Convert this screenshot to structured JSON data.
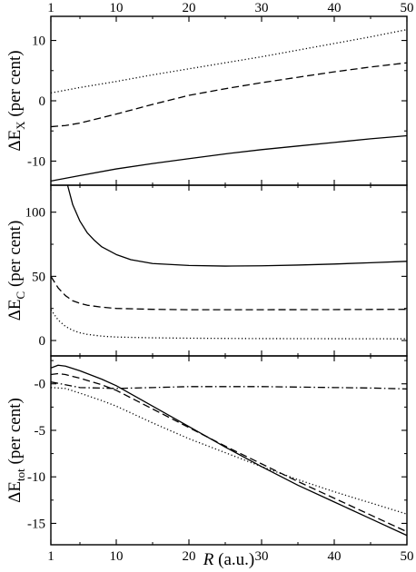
{
  "chart_data": [
    {
      "type": "line",
      "ylabel": {
        "main": "ΔE",
        "sub": "X",
        "tail": " (per cent)"
      },
      "xlim": [
        1,
        50
      ],
      "ylim": [
        -14,
        14
      ],
      "yticks": [
        10,
        0,
        -10
      ],
      "ytick_labels": [
        "10",
        "0",
        "-10"
      ],
      "xticks": [
        1,
        10,
        20,
        30,
        40,
        50
      ],
      "xtick_labels": [
        "1",
        "10",
        "20",
        "30",
        "40",
        "50"
      ],
      "series": [
        {
          "style": "dotted",
          "x": [
            1,
            5,
            10,
            15,
            20,
            25,
            30,
            35,
            40,
            45,
            50
          ],
          "y": [
            1.3,
            2.2,
            3.2,
            4.3,
            5.3,
            6.3,
            7.3,
            8.4,
            9.5,
            10.6,
            11.8
          ]
        },
        {
          "style": "dashed",
          "x": [
            1,
            3,
            5,
            8,
            10,
            15,
            20,
            25,
            30,
            35,
            40,
            45,
            50
          ],
          "y": [
            -4.3,
            -4.1,
            -3.7,
            -2.8,
            -2.2,
            -0.6,
            0.9,
            2.0,
            3.0,
            3.9,
            4.8,
            5.6,
            6.3
          ]
        },
        {
          "style": "solid",
          "x": [
            1,
            5,
            10,
            15,
            20,
            25,
            30,
            35,
            40,
            45,
            50
          ],
          "y": [
            -13.3,
            -12.4,
            -11.3,
            -10.4,
            -9.6,
            -8.8,
            -8.1,
            -7.5,
            -6.9,
            -6.3,
            -5.8
          ]
        }
      ]
    },
    {
      "type": "line",
      "ylabel": {
        "main": "ΔE",
        "sub": "C",
        "tail": " (per cent)"
      },
      "xlim": [
        1,
        50
      ],
      "ylim": [
        -12,
        121
      ],
      "yticks": [
        100,
        50,
        0
      ],
      "ytick_labels": [
        "100",
        "50",
        "0"
      ],
      "xticks": [
        1,
        10,
        20,
        30,
        40,
        50
      ],
      "xtick_labels": [],
      "series": [
        {
          "style": "solid",
          "x": [
            3.3,
            4,
            5,
            6,
            7,
            8,
            10,
            12,
            15,
            20,
            25,
            30,
            35,
            40,
            45,
            50
          ],
          "y": [
            121,
            106,
            93,
            84,
            78,
            73,
            67,
            63,
            60,
            58.5,
            58,
            58.2,
            58.8,
            59.6,
            60.6,
            61.7
          ]
        },
        {
          "style": "dashed",
          "x": [
            1,
            2,
            3,
            4,
            5,
            6,
            8,
            10,
            15,
            20,
            30,
            40,
            50
          ],
          "y": [
            50,
            41,
            35,
            31,
            29,
            27.5,
            26,
            25,
            24.3,
            24,
            24,
            24.1,
            24.3
          ]
        },
        {
          "style": "dotted",
          "x": [
            1,
            2,
            3,
            4,
            5,
            6,
            8,
            10,
            15,
            20,
            30,
            40,
            50
          ],
          "y": [
            24,
            16,
            11,
            8,
            6,
            4.8,
            3.4,
            2.7,
            2.1,
            1.8,
            1.5,
            1.4,
            1.3
          ]
        }
      ]
    },
    {
      "type": "line",
      "ylabel": {
        "main": "ΔE",
        "sub": "tot",
        "tail": " (per cent)"
      },
      "xlim": [
        1,
        50
      ],
      "ylim": [
        -17.3,
        3
      ],
      "yticks": [
        0,
        -5,
        -10,
        -15
      ],
      "ytick_labels": [
        "-0",
        "-5",
        "-10",
        "-15"
      ],
      "xticks": [
        1,
        10,
        20,
        30,
        40,
        50
      ],
      "xtick_labels": [
        "1",
        "10",
        "20",
        "30",
        "40",
        "50"
      ],
      "xlabel": {
        "italic": "R",
        "tail": " (a.u.)"
      },
      "series": [
        {
          "style": "solid",
          "x": [
            1,
            2,
            3,
            5,
            8,
            10,
            15,
            20,
            25,
            30,
            35,
            40,
            45,
            50
          ],
          "y": [
            1.7,
            2.0,
            1.9,
            1.4,
            0.5,
            -0.2,
            -2.4,
            -4.6,
            -6.8,
            -8.9,
            -10.9,
            -12.7,
            -14.5,
            -16.3
          ]
        },
        {
          "style": "dashed",
          "x": [
            1,
            2,
            3,
            5,
            8,
            10,
            15,
            20,
            25,
            30,
            35,
            40,
            45,
            50
          ],
          "y": [
            1.0,
            1.1,
            1.0,
            0.6,
            -0.1,
            -0.7,
            -2.7,
            -4.7,
            -6.7,
            -8.6,
            -10.5,
            -12.3,
            -14.1,
            -15.9
          ]
        },
        {
          "style": "dashdot",
          "x": [
            1,
            5,
            10,
            15,
            20,
            25,
            30,
            35,
            40,
            45,
            50
          ],
          "y": [
            0.2,
            -0.4,
            -0.5,
            -0.4,
            -0.3,
            -0.3,
            -0.3,
            -0.35,
            -0.4,
            -0.45,
            -0.55
          ]
        },
        {
          "style": "dotted",
          "x": [
            1,
            3,
            5,
            8,
            10,
            15,
            20,
            25,
            30,
            35,
            40,
            45,
            50
          ],
          "y": [
            -0.4,
            -0.5,
            -1.0,
            -1.8,
            -2.4,
            -4.2,
            -5.9,
            -7.4,
            -8.9,
            -10.3,
            -11.6,
            -12.8,
            -14.0
          ]
        }
      ]
    }
  ]
}
